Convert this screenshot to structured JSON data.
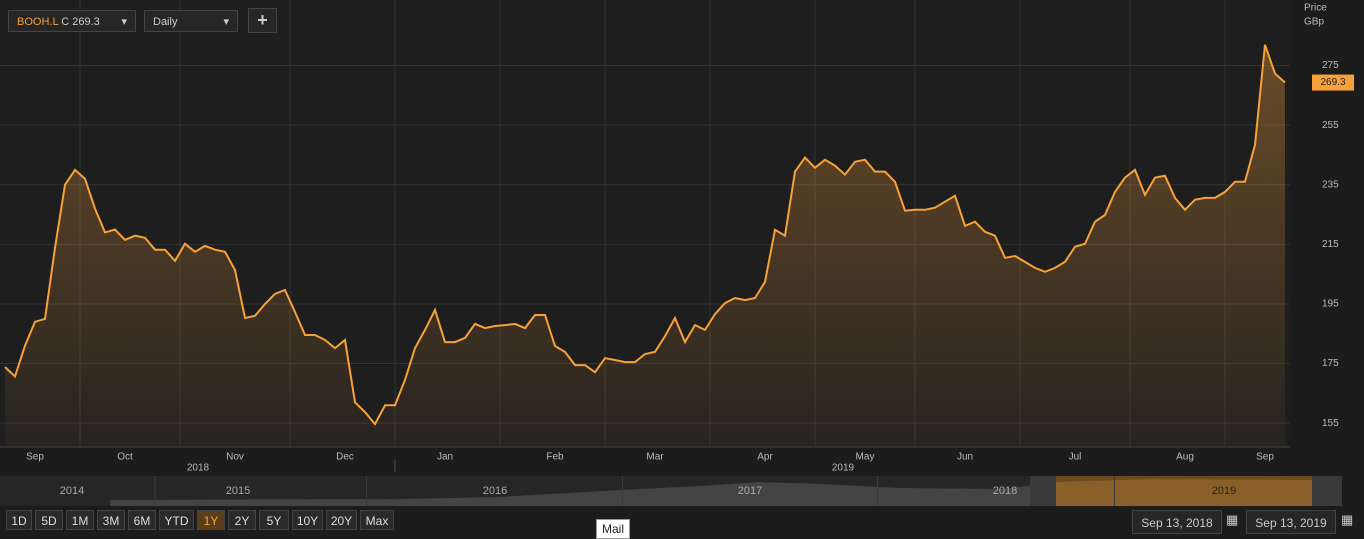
{
  "toolbar": {
    "ticker": "BOOH.L",
    "close_prefix": "C",
    "interval": "Daily",
    "add": "+"
  },
  "chart_data": {
    "type": "area",
    "color": "#f7a13b",
    "axis_title": [
      "Price",
      "GBp"
    ],
    "ylim": [
      147,
      297
    ],
    "yticks": [
      155,
      175,
      195,
      215,
      235,
      255,
      275
    ],
    "grid": true,
    "year_labels": [
      "2018",
      "2019"
    ],
    "categories": [
      null,
      null,
      null,
      "Sep",
      null,
      null,
      null,
      null,
      null,
      null,
      null,
      null,
      "Oct",
      null,
      null,
      null,
      null,
      null,
      null,
      null,
      null,
      null,
      null,
      "Nov",
      null,
      null,
      null,
      null,
      null,
      null,
      null,
      null,
      null,
      null,
      "Dec",
      null,
      null,
      null,
      null,
      null,
      null,
      null,
      null,
      null,
      "Jan",
      null,
      null,
      null,
      null,
      null,
      null,
      null,
      null,
      null,
      null,
      "Feb",
      null,
      null,
      null,
      null,
      null,
      null,
      null,
      null,
      null,
      "Mar",
      null,
      null,
      null,
      null,
      null,
      null,
      null,
      null,
      null,
      null,
      "Apr",
      null,
      null,
      null,
      null,
      null,
      null,
      null,
      null,
      null,
      "May",
      null,
      null,
      null,
      null,
      null,
      null,
      null,
      null,
      null,
      "Jun",
      null,
      null,
      null,
      null,
      null,
      null,
      null,
      null,
      null,
      null,
      "Jul",
      null,
      null,
      null,
      null,
      null,
      null,
      null,
      null,
      null,
      null,
      "Aug",
      null,
      null,
      null,
      null,
      null,
      null,
      null,
      "Sep",
      null,
      null
    ],
    "values": [
      173.8,
      170.7,
      181,
      189,
      190,
      213.8,
      235,
      240,
      237,
      227,
      219,
      220,
      216.5,
      217.9,
      217.2,
      213.2,
      213.2,
      209.5,
      215.2,
      212.5,
      214.5,
      213.2,
      212.5,
      206.4,
      190.3,
      191,
      195,
      198.4,
      199.7,
      192.3,
      184.6,
      184.6,
      182.9,
      180.2,
      182.9,
      162,
      158.7,
      154.7,
      161,
      161,
      169.5,
      180.2,
      186.3,
      193,
      182.2,
      182.2,
      183.6,
      188.3,
      186.9,
      187.6,
      187.9,
      188.3,
      186.9,
      191.3,
      191.3,
      180.9,
      178.9,
      174.5,
      174.5,
      172.1,
      176.8,
      176.2,
      175.5,
      175.5,
      178.2,
      178.9,
      184.2,
      190.3,
      182.2,
      187.9,
      186.3,
      191.6,
      195.3,
      197,
      196.3,
      197,
      202.4,
      219.9,
      217.9,
      239.4,
      244.1,
      240.7,
      243.4,
      241.4,
      238.4,
      242.7,
      243.4,
      239.4,
      239.4,
      236,
      226.3,
      226.6,
      226.6,
      227.3,
      229.3,
      231.3,
      221.2,
      222.6,
      219.2,
      217.9,
      210.5,
      211.1,
      209.1,
      207.1,
      205.8,
      207.1,
      209.1,
      214.2,
      215.2,
      222.6,
      224.9,
      232.6,
      237.4,
      240,
      231.6,
      237.4,
      238,
      230.6,
      226.6,
      230,
      230.6,
      230.6,
      232.6,
      236,
      236,
      248.4,
      282,
      272.3,
      269.3
    ]
  },
  "navigator": {
    "years": [
      "2014",
      "2015",
      "2016",
      "2017",
      "2018",
      "2019"
    ]
  },
  "range_buttons": [
    "1D",
    "5D",
    "1M",
    "3M",
    "6M",
    "YTD",
    "1Y",
    "2Y",
    "5Y",
    "10Y",
    "20Y",
    "Max"
  ],
  "selected_range": "1Y",
  "tooltip": "Mail",
  "date_range": {
    "from": "Sep 13, 2018",
    "to": "Sep 13, 2019"
  }
}
